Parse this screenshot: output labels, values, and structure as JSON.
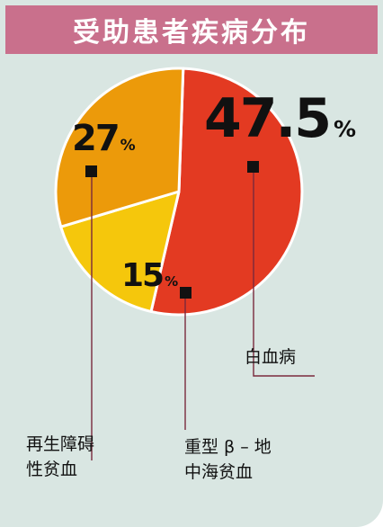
{
  "title": "受助患者疾病分布",
  "colors": {
    "background": "#d9e6e2",
    "title_bg": "#c9708c",
    "leukemia": "#e33a22",
    "thalassemia": "#f5c70c",
    "aplastic": "#ec9a0a"
  },
  "chart_data": {
    "type": "pie",
    "title": "受助患者疾病分布",
    "unit": "%",
    "slices": [
      {
        "label_lines": [
          "白血病"
        ],
        "value": 47.5,
        "display": "47.5"
      },
      {
        "label_lines": [
          "重型 β – 地",
          "中海贫血"
        ],
        "value": 15,
        "display": "15"
      },
      {
        "label_lines": [
          "再生障碍",
          "性贫血"
        ],
        "value": 27,
        "display": "27"
      }
    ]
  }
}
